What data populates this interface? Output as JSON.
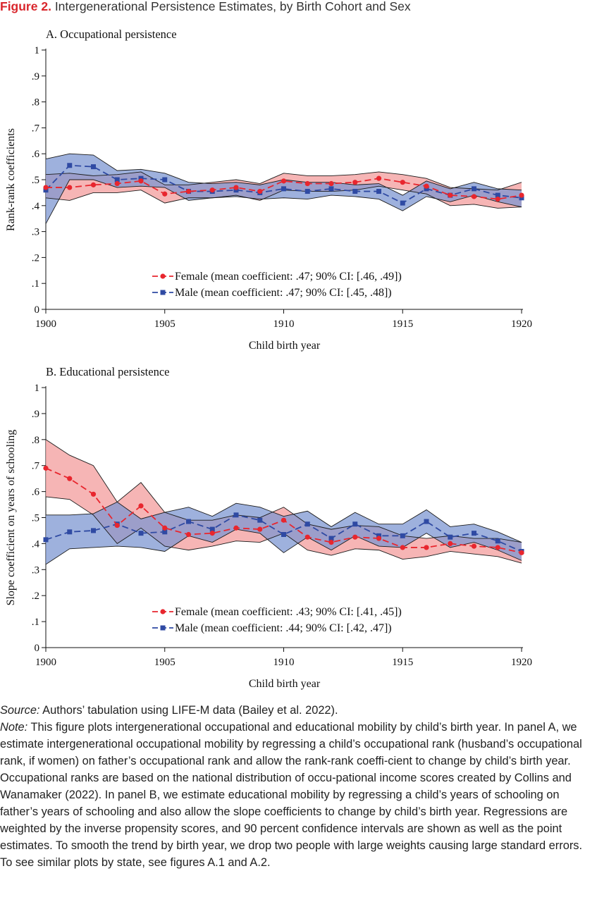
{
  "figure": {
    "label": "Figure 2.",
    "title": "Intergenerational Persistence Estimates, by Birth Cohort and Sex"
  },
  "colors": {
    "female": "#e8262e",
    "female_band": "#f4a3a3",
    "male": "#2f4aa3",
    "male_band": "#7e97d1",
    "band_edge": "#1a1a1a"
  },
  "chart_data": [
    {
      "type": "line",
      "title": "A. Occupational persistence",
      "xlabel": "Child birth year",
      "ylabel": "Rank-rank coefficients",
      "xlim": [
        1900,
        1920
      ],
      "ylim": [
        0,
        1
      ],
      "x_ticks": [
        1900,
        1905,
        1910,
        1915,
        1920
      ],
      "x_tick_labels": [
        "1900",
        "1905",
        "1910",
        "1915",
        "1920"
      ],
      "y_ticks": [
        0,
        0.1,
        0.2,
        0.3,
        0.4,
        0.5,
        0.6,
        0.7,
        0.8,
        0.9,
        1
      ],
      "y_tick_labels": [
        "0",
        ".1",
        ".2",
        ".3",
        ".4",
        ".5",
        ".6",
        ".7",
        ".8",
        ".9",
        "1"
      ],
      "grid": false,
      "legend_position": "bottom-center",
      "x": [
        1900,
        1901,
        1902,
        1903,
        1904,
        1905,
        1906,
        1907,
        1908,
        1909,
        1910,
        1911,
        1912,
        1913,
        1914,
        1915,
        1916,
        1917,
        1918,
        1919,
        1920
      ],
      "series": [
        {
          "name": "Female (mean coefficient: .47; 90% CI: [.46, .49])",
          "key": "female",
          "values": [
            0.47,
            0.47,
            0.48,
            0.485,
            0.495,
            0.445,
            0.455,
            0.46,
            0.47,
            0.455,
            0.495,
            0.485,
            0.485,
            0.49,
            0.505,
            0.49,
            0.475,
            0.44,
            0.435,
            0.425,
            0.44
          ],
          "ci_low": [
            0.43,
            0.42,
            0.45,
            0.45,
            0.46,
            0.41,
            0.43,
            0.43,
            0.44,
            0.42,
            0.46,
            0.455,
            0.455,
            0.46,
            0.475,
            0.46,
            0.445,
            0.4,
            0.405,
            0.39,
            0.395
          ],
          "ci_high": [
            0.52,
            0.525,
            0.515,
            0.52,
            0.53,
            0.48,
            0.48,
            0.49,
            0.5,
            0.485,
            0.525,
            0.515,
            0.515,
            0.52,
            0.53,
            0.52,
            0.505,
            0.47,
            0.465,
            0.46,
            0.49
          ]
        },
        {
          "name": "Male (mean coefficient: .47; 90% CI: [.45, .48])",
          "key": "male",
          "values": [
            0.46,
            0.555,
            0.55,
            0.5,
            0.505,
            0.5,
            0.455,
            0.455,
            0.46,
            0.45,
            0.465,
            0.455,
            0.465,
            0.455,
            0.455,
            0.41,
            0.465,
            0.44,
            0.465,
            0.44,
            0.43
          ],
          "ci_low": [
            0.33,
            0.5,
            0.5,
            0.47,
            0.475,
            0.47,
            0.42,
            0.43,
            0.435,
            0.425,
            0.43,
            0.425,
            0.44,
            0.435,
            0.425,
            0.38,
            0.435,
            0.415,
            0.44,
            0.415,
            0.395
          ],
          "ci_high": [
            0.58,
            0.6,
            0.595,
            0.535,
            0.54,
            0.525,
            0.49,
            0.485,
            0.49,
            0.48,
            0.5,
            0.49,
            0.49,
            0.48,
            0.485,
            0.44,
            0.495,
            0.465,
            0.49,
            0.465,
            0.46
          ]
        }
      ]
    },
    {
      "type": "line",
      "title": "B. Educational persistence",
      "xlabel": "Child birth year",
      "ylabel": "Slope coefficient on years of schooling",
      "xlim": [
        1900,
        1920
      ],
      "ylim": [
        0,
        1
      ],
      "x_ticks": [
        1900,
        1905,
        1910,
        1915,
        1920
      ],
      "x_tick_labels": [
        "1900",
        "1905",
        "1910",
        "1915",
        "1920"
      ],
      "y_ticks": [
        0,
        0.1,
        0.2,
        0.3,
        0.4,
        0.5,
        0.6,
        0.7,
        0.8,
        0.9,
        1
      ],
      "y_tick_labels": [
        "0",
        ".1",
        ".2",
        ".3",
        ".4",
        ".5",
        ".6",
        ".7",
        ".8",
        ".9",
        "1"
      ],
      "grid": false,
      "legend_position": "bottom-center",
      "x": [
        1900,
        1901,
        1902,
        1903,
        1904,
        1905,
        1906,
        1907,
        1908,
        1909,
        1910,
        1911,
        1912,
        1913,
        1914,
        1915,
        1916,
        1917,
        1918,
        1919,
        1920
      ],
      "series": [
        {
          "name": "Female (mean coefficient: .43; 90% CI: [.41, .45])",
          "key": "female",
          "values": [
            0.69,
            0.65,
            0.59,
            0.47,
            0.545,
            0.46,
            0.435,
            0.44,
            0.46,
            0.455,
            0.49,
            0.425,
            0.405,
            0.425,
            0.42,
            0.385,
            0.385,
            0.4,
            0.39,
            0.385,
            0.365
          ],
          "ci_low": [
            0.58,
            0.57,
            0.51,
            0.4,
            0.46,
            0.39,
            0.375,
            0.39,
            0.41,
            0.405,
            0.44,
            0.375,
            0.355,
            0.38,
            0.375,
            0.34,
            0.35,
            0.37,
            0.36,
            0.35,
            0.325
          ],
          "ci_high": [
            0.8,
            0.74,
            0.7,
            0.56,
            0.635,
            0.52,
            0.49,
            0.49,
            0.51,
            0.5,
            0.54,
            0.475,
            0.455,
            0.47,
            0.465,
            0.43,
            0.42,
            0.43,
            0.42,
            0.42,
            0.405
          ]
        },
        {
          "name": "Male (mean coefficient: .44; 90% CI: [.42, .47])",
          "key": "male",
          "values": [
            0.415,
            0.445,
            0.45,
            0.475,
            0.44,
            0.445,
            0.485,
            0.455,
            0.51,
            0.49,
            0.435,
            0.475,
            0.42,
            0.475,
            0.43,
            0.43,
            0.485,
            0.425,
            0.44,
            0.41,
            0.37
          ],
          "ci_low": [
            0.32,
            0.38,
            0.385,
            0.39,
            0.385,
            0.37,
            0.43,
            0.405,
            0.455,
            0.44,
            0.365,
            0.425,
            0.375,
            0.43,
            0.39,
            0.385,
            0.44,
            0.385,
            0.405,
            0.375,
            0.335
          ],
          "ci_high": [
            0.51,
            0.51,
            0.515,
            0.56,
            0.495,
            0.52,
            0.54,
            0.505,
            0.555,
            0.54,
            0.505,
            0.525,
            0.465,
            0.52,
            0.475,
            0.475,
            0.53,
            0.465,
            0.475,
            0.445,
            0.405
          ]
        }
      ]
    }
  ],
  "notes": {
    "source_label": "Source:",
    "source_text": "Authors’ tabulation using LIFE-M data (Bailey et al. 2022).",
    "note_label": "Note:",
    "note_text": "This figure plots intergenerational occupational and educational mobility by child’s birth year. In panel A, we estimate intergenerational occupational mobility by regressing a child’s occupational rank (husband’s occupational rank, if women) on father’s occupational rank and allow the rank-rank coeffi-cient to change by child’s birth year. Occupational ranks are based on the national distribution of occu-pational income scores created by Collins and Wanamaker (2022). In panel B, we estimate educational mobility by regressing a child’s years of schooling on father’s years of schooling and also allow the slope coefficients to change by child’s birth year. Regressions are weighted by the inverse propensity scores, and 90 percent confidence intervals are shown as well as the point estimates. To smooth the trend by birth year, we drop two people with large weights causing large standard errors. To see similar plots by state, see figures A.1 and A.2."
  }
}
